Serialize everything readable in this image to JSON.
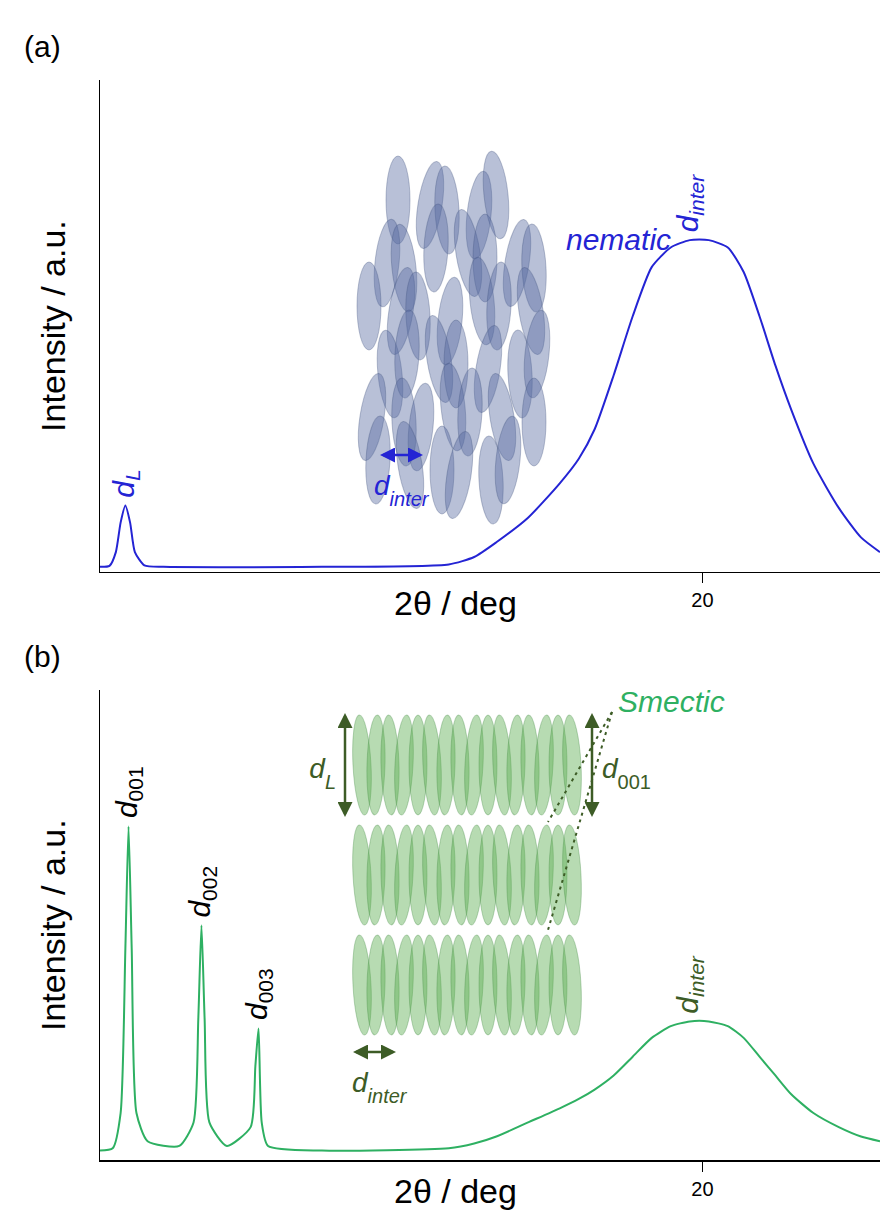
{
  "chart_data": [
    {
      "type": "line",
      "panel": "(a)",
      "x_label": "2θ / deg",
      "y_label": "Intensity / a.u.",
      "x": [
        1,
        1.3,
        1.5,
        1.65,
        1.8,
        1.95,
        2.1,
        2.4,
        3,
        8,
        12,
        12.8,
        13.5,
        14.5,
        15.5,
        16.1,
        16.6,
        17.2,
        17.8,
        18.4,
        19.0,
        19.6,
        20.2,
        20.8,
        21.3,
        21.8,
        22.3,
        22.8,
        23.5,
        24.3,
        25,
        25.6
      ],
      "values": [
        1,
        1.2,
        4,
        10,
        13.5,
        10,
        4,
        1.3,
        1,
        1,
        1.5,
        3,
        6,
        11,
        18,
        23,
        29,
        40,
        52,
        62,
        66,
        67.5,
        67.5,
        66,
        61,
        52,
        42,
        33,
        22,
        13,
        7,
        4
      ],
      "color": "#2424d4",
      "xlim": [
        1,
        25.6
      ],
      "xticks": [
        20
      ],
      "ylim": [
        0,
        100
      ],
      "yticks": [],
      "tick_labels": "x",
      "grid": false,
      "peak_labels": [
        {
          "symbol": "d",
          "sub": "L",
          "x": 1.8,
          "color": "#2424d4"
        },
        {
          "symbol": "d",
          "sub": "inter",
          "x": 19.6,
          "color": "#2424d4"
        }
      ],
      "inset": {
        "phase": "nematic",
        "color": "#2424d4",
        "spacing": {
          "symbol": "d",
          "sub": "inter"
        }
      }
    },
    {
      "type": "line",
      "panel": "(b)",
      "x_label": "2θ / deg",
      "y_label": "Intensity / a.u.",
      "x": [
        1,
        1.4,
        1.65,
        1.8,
        1.9,
        2.0,
        2.15,
        2.5,
        3.5,
        3.95,
        4.1,
        4.2,
        4.3,
        4.45,
        5.0,
        5.75,
        5.9,
        6.0,
        6.1,
        6.3,
        8,
        12,
        12.8,
        13.5,
        14.5,
        15.5,
        16.1,
        16.6,
        17.2,
        17.8,
        18.4,
        19.0,
        19.6,
        20.2,
        20.8,
        21.3,
        21.8,
        22.3,
        22.8,
        23.5,
        24.3,
        25,
        25.6
      ],
      "values": [
        2,
        2.5,
        10,
        45,
        71,
        45,
        10,
        4,
        3,
        8,
        30,
        50,
        30,
        8,
        3,
        7,
        20,
        28,
        8,
        3,
        2,
        2.5,
        3.5,
        5,
        8,
        11,
        13,
        15,
        18,
        22,
        26,
        28.5,
        29.5,
        29.5,
        28.5,
        26,
        22,
        18,
        14,
        10,
        7,
        5,
        4
      ],
      "color": "#2eb062",
      "xlim": [
        1,
        25.6
      ],
      "xticks": [
        20
      ],
      "ylim": [
        0,
        100
      ],
      "yticks": [],
      "tick_labels": "x",
      "grid": false,
      "peak_labels": [
        {
          "symbol": "d",
          "sub": "001",
          "x": 1.9,
          "color": "#000000"
        },
        {
          "symbol": "d",
          "sub": "002",
          "x": 4.2,
          "color": "#000000"
        },
        {
          "symbol": "d",
          "sub": "003",
          "x": 6.0,
          "color": "#000000"
        },
        {
          "symbol": "d",
          "sub": "inter",
          "x": 19.6,
          "color": "#3d5c26"
        }
      ],
      "inset": {
        "phase": "Smectic",
        "color": "#3d5c26",
        "length": {
          "symbol": "d",
          "sub": "L"
        },
        "layer": {
          "symbol": "d",
          "sub": "001"
        },
        "spacing": {
          "symbol": "d",
          "sub": "inter"
        }
      }
    }
  ]
}
